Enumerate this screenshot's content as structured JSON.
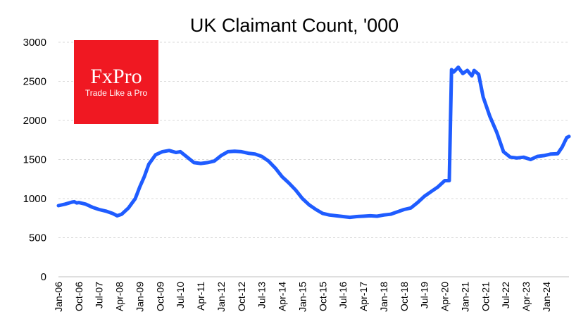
{
  "chart_data": {
    "type": "line",
    "title": "UK Claimant Count, '000",
    "xlabel": "",
    "ylabel": "",
    "ylim": [
      0,
      3000
    ],
    "yticks": [
      0,
      500,
      1000,
      1500,
      2000,
      2500,
      3000
    ],
    "grid": "horizontal-dashed",
    "legend": "none",
    "x_tick_labels": [
      "Jan-06",
      "Oct-06",
      "Jul-07",
      "Apr-08",
      "Jan-09",
      "Oct-09",
      "Jul-10",
      "Apr-11",
      "Jan-12",
      "Oct-12",
      "Jul-13",
      "Apr-14",
      "Jan-15",
      "Oct-15",
      "Jul-16",
      "Apr-17",
      "Jan-18",
      "Oct-18",
      "Jul-19",
      "Apr-20",
      "Jan-21",
      "Oct-21",
      "Jul-22",
      "Apr-23",
      "Jan-24"
    ],
    "series": [
      {
        "color": "#1f5cff",
        "points": [
          [
            "2006-01",
            910
          ],
          [
            "2006-04",
            930
          ],
          [
            "2006-07",
            955
          ],
          [
            "2006-08",
            960
          ],
          [
            "2006-09",
            945
          ],
          [
            "2006-10",
            950
          ],
          [
            "2007-01",
            930
          ],
          [
            "2007-04",
            890
          ],
          [
            "2007-07",
            860
          ],
          [
            "2007-10",
            840
          ],
          [
            "2008-01",
            810
          ],
          [
            "2008-03",
            780
          ],
          [
            "2008-05",
            800
          ],
          [
            "2008-08",
            880
          ],
          [
            "2008-11",
            1000
          ],
          [
            "2009-01",
            1150
          ],
          [
            "2009-03",
            1280
          ],
          [
            "2009-05",
            1440
          ],
          [
            "2009-08",
            1560
          ],
          [
            "2009-11",
            1600
          ],
          [
            "2010-02",
            1615
          ],
          [
            "2010-05",
            1590
          ],
          [
            "2010-07",
            1600
          ],
          [
            "2010-10",
            1530
          ],
          [
            "2011-01",
            1460
          ],
          [
            "2011-04",
            1450
          ],
          [
            "2011-07",
            1460
          ],
          [
            "2011-10",
            1480
          ],
          [
            "2012-01",
            1550
          ],
          [
            "2012-04",
            1600
          ],
          [
            "2012-07",
            1605
          ],
          [
            "2012-10",
            1600
          ],
          [
            "2013-01",
            1580
          ],
          [
            "2013-04",
            1570
          ],
          [
            "2013-07",
            1540
          ],
          [
            "2013-10",
            1480
          ],
          [
            "2014-01",
            1390
          ],
          [
            "2014-04",
            1280
          ],
          [
            "2014-07",
            1200
          ],
          [
            "2014-10",
            1110
          ],
          [
            "2015-01",
            1000
          ],
          [
            "2015-04",
            920
          ],
          [
            "2015-07",
            860
          ],
          [
            "2015-10",
            810
          ],
          [
            "2016-01",
            790
          ],
          [
            "2016-04",
            780
          ],
          [
            "2016-07",
            770
          ],
          [
            "2016-10",
            760
          ],
          [
            "2017-01",
            770
          ],
          [
            "2017-04",
            775
          ],
          [
            "2017-07",
            780
          ],
          [
            "2017-10",
            775
          ],
          [
            "2018-01",
            790
          ],
          [
            "2018-04",
            800
          ],
          [
            "2018-07",
            830
          ],
          [
            "2018-10",
            860
          ],
          [
            "2019-01",
            880
          ],
          [
            "2019-04",
            950
          ],
          [
            "2019-07",
            1030
          ],
          [
            "2019-10",
            1090
          ],
          [
            "2020-01",
            1150
          ],
          [
            "2020-04",
            1230
          ],
          [
            "2020-05",
            1230
          ],
          [
            "2020-06",
            1230
          ],
          [
            "2020-07",
            2650
          ],
          [
            "2020-08",
            2620
          ],
          [
            "2020-10",
            2680
          ],
          [
            "2020-12",
            2600
          ],
          [
            "2021-02",
            2640
          ],
          [
            "2021-04",
            2570
          ],
          [
            "2021-05",
            2640
          ],
          [
            "2021-07",
            2590
          ],
          [
            "2021-09",
            2300
          ],
          [
            "2021-12",
            2050
          ],
          [
            "2022-03",
            1850
          ],
          [
            "2022-06",
            1600
          ],
          [
            "2022-09",
            1530
          ],
          [
            "2022-12",
            1520
          ],
          [
            "2023-03",
            1530
          ],
          [
            "2023-06",
            1500
          ],
          [
            "2023-09",
            1540
          ],
          [
            "2023-12",
            1550
          ],
          [
            "2024-03",
            1570
          ],
          [
            "2024-06",
            1575
          ],
          [
            "2024-08",
            1660
          ],
          [
            "2024-10",
            1780
          ],
          [
            "2024-11",
            1795
          ]
        ]
      }
    ]
  },
  "logo": {
    "brand": "FxPro",
    "tagline": "Trade Like a Pro",
    "bg_color": "#f01822"
  }
}
